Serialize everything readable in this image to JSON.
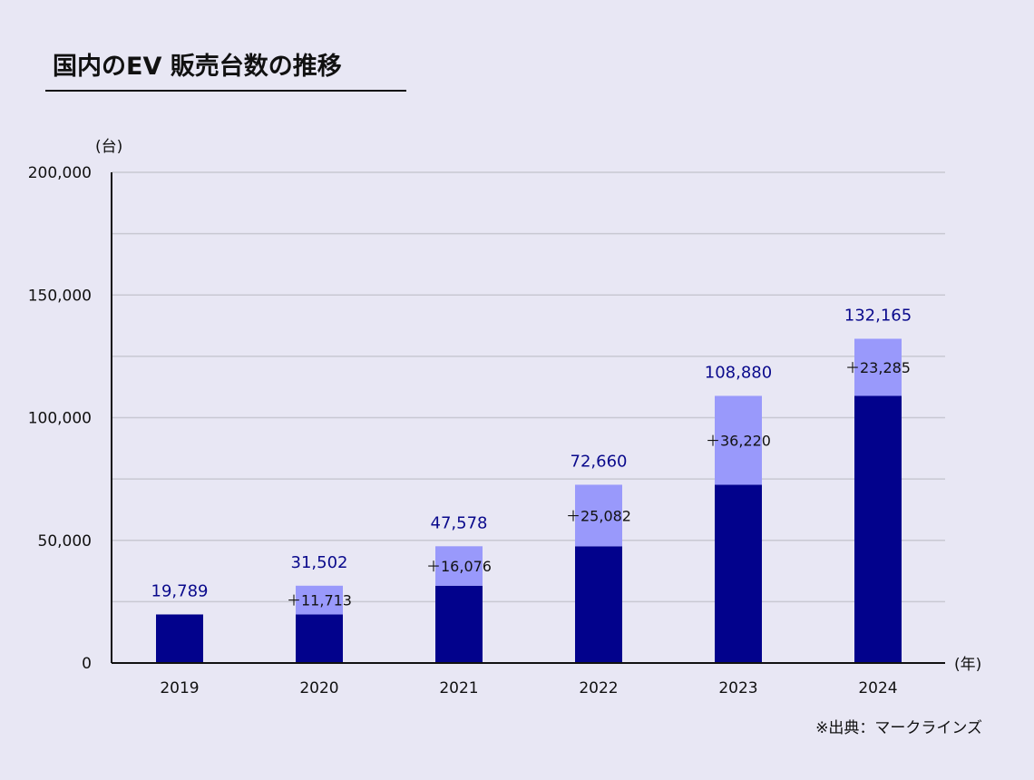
{
  "chart_data": {
    "type": "bar",
    "stacked": true,
    "title": "国内のEV 販売台数の推移",
    "y_unit": "(台)",
    "x_unit": "(年)",
    "ylim": [
      0,
      200000
    ],
    "y_ticks": [
      0,
      50000,
      100000,
      150000,
      200000
    ],
    "y_tick_labels": [
      "0",
      "50,000",
      "100,000",
      "150,000",
      "200,000"
    ],
    "grid": true,
    "categories": [
      "2019",
      "2020",
      "2021",
      "2022",
      "2023",
      "2024"
    ],
    "totals": [
      19789,
      31502,
      47578,
      72660,
      108880,
      132165
    ],
    "total_labels": [
      "19,789",
      "31,502",
      "47,578",
      "72,660",
      "108,880",
      "132,165"
    ],
    "series": [
      {
        "values": [
          19789,
          19789,
          31502,
          47578,
          72660,
          108880
        ]
      },
      {
        "values": [
          0,
          11713,
          16076,
          25082,
          36220,
          23285
        ]
      }
    ],
    "increase_labels": [
      "",
      "＋11,713",
      "＋16,076",
      "＋25,082",
      "＋36,220",
      "＋23,285"
    ],
    "colors": {
      "base": "#02028c",
      "increase": "#9999fb",
      "total_label": "#0a0a8c",
      "grid": "#c8c8d2"
    }
  },
  "source": "※出典：マークラインズ"
}
